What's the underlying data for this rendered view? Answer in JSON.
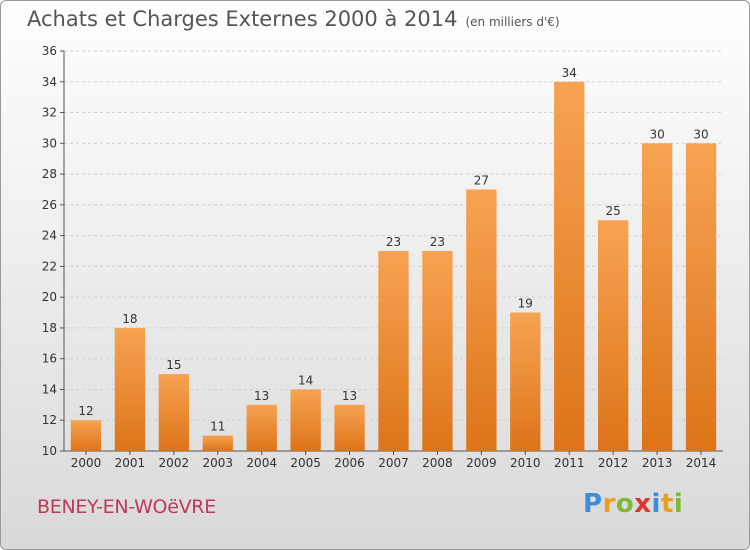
{
  "header": {
    "title": "Achats et Charges Externes 2000 à 2014",
    "unit": "(en milliers d'€)"
  },
  "footer": {
    "place": "BENEY-EN-WOëVRE",
    "logo_letters": [
      "P",
      "r",
      "o",
      "x",
      "i",
      "t",
      "i"
    ]
  },
  "chart_data": {
    "type": "bar",
    "title": "Achats et Charges Externes 2000 à 2014",
    "subtitle": "(en milliers d'€)",
    "categories": [
      "2000",
      "2001",
      "2002",
      "2003",
      "2004",
      "2005",
      "2006",
      "2007",
      "2008",
      "2009",
      "2010",
      "2011",
      "2012",
      "2013",
      "2014"
    ],
    "values": [
      12,
      18,
      15,
      11,
      13,
      14,
      13,
      23,
      23,
      27,
      19,
      34,
      25,
      30,
      30
    ],
    "ylim": [
      10,
      36
    ],
    "yticks": [
      10,
      12,
      14,
      16,
      18,
      20,
      22,
      24,
      26,
      28,
      30,
      32,
      34,
      36
    ],
    "grid": true,
    "bar_color": "#f0903a"
  }
}
